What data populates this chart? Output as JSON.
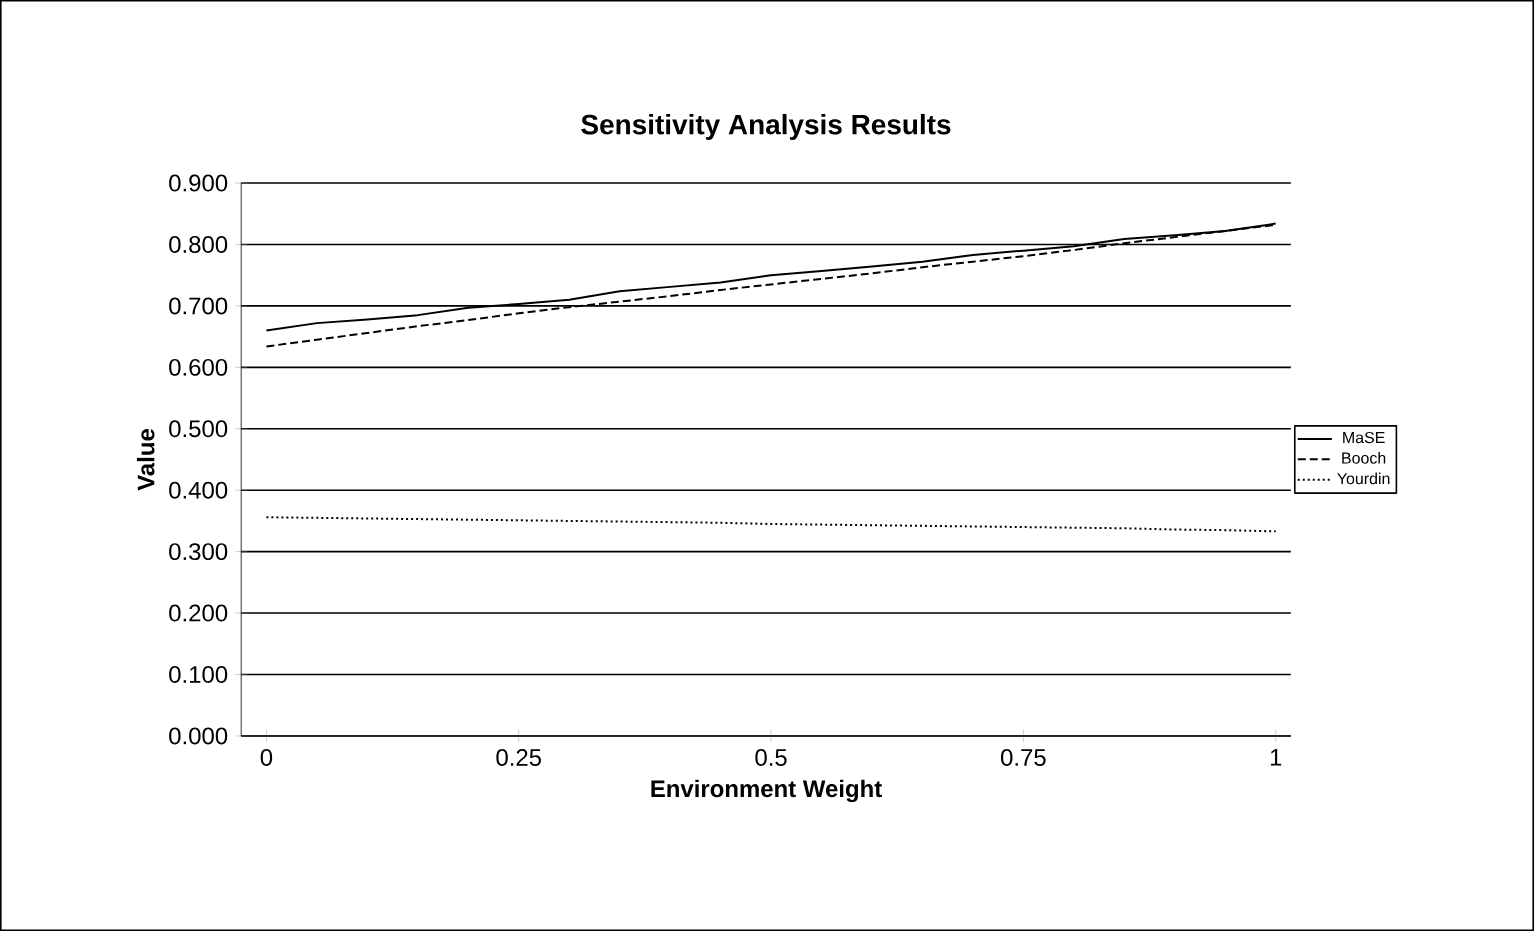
{
  "chart_data": {
    "type": "line",
    "title": "Sensitivity Analysis Results",
    "xlabel": "Environment Weight",
    "ylabel": "Value",
    "x": [
      0,
      0.05,
      0.1,
      0.15,
      0.2,
      0.25,
      0.3,
      0.35,
      0.4,
      0.45,
      0.5,
      0.55,
      0.6,
      0.65,
      0.7,
      0.75,
      0.8,
      0.85,
      0.9,
      0.95,
      1.0
    ],
    "series": [
      {
        "name": "MaSE",
        "color": "#000000",
        "line_style": "solid",
        "values": [
          0.66,
          0.672,
          0.678,
          0.685,
          0.697,
          0.703,
          0.71,
          0.724,
          0.731,
          0.738,
          0.75,
          0.757,
          0.764,
          0.772,
          0.783,
          0.79,
          0.797,
          0.809,
          0.815,
          0.822,
          0.834
        ]
      },
      {
        "name": "Booch",
        "color": "#000000",
        "line_style": "dashed",
        "values": [
          0.634,
          0.645,
          0.656,
          0.667,
          0.677,
          0.688,
          0.698,
          0.707,
          0.716,
          0.726,
          0.735,
          0.744,
          0.753,
          0.763,
          0.772,
          0.781,
          0.791,
          0.802,
          0.812,
          0.822,
          0.832
        ]
      },
      {
        "name": "Yourdin",
        "color": "#000000",
        "line_style": "dotted",
        "values": [
          0.356,
          0.355,
          0.354,
          0.353,
          0.352,
          0.351,
          0.35,
          0.349,
          0.348,
          0.347,
          0.345,
          0.344,
          0.343,
          0.342,
          0.341,
          0.34,
          0.339,
          0.338,
          0.336,
          0.335,
          0.333
        ]
      }
    ],
    "xlim": [
      -0.025,
      1.015
    ],
    "xticks": [
      0,
      0.25,
      0.5,
      0.75,
      1
    ],
    "ylim": [
      0,
      0.9
    ],
    "yticks": [
      {
        "value": 0,
        "label": "0.000"
      },
      {
        "value": 0.1,
        "label": "0.100"
      },
      {
        "value": 0.2,
        "label": "0.200"
      },
      {
        "value": 0.3,
        "label": "0.300"
      },
      {
        "value": 0.4,
        "label": "0.400"
      },
      {
        "value": 0.5,
        "label": "0.500"
      },
      {
        "value": 0.6,
        "label": "0.600"
      },
      {
        "value": 0.7,
        "label": "0.700"
      },
      {
        "value": 0.8,
        "label": "0.800"
      },
      {
        "value": 0.9,
        "label": "0.900"
      }
    ],
    "grid": "y",
    "legend": "right",
    "marker": "none"
  }
}
